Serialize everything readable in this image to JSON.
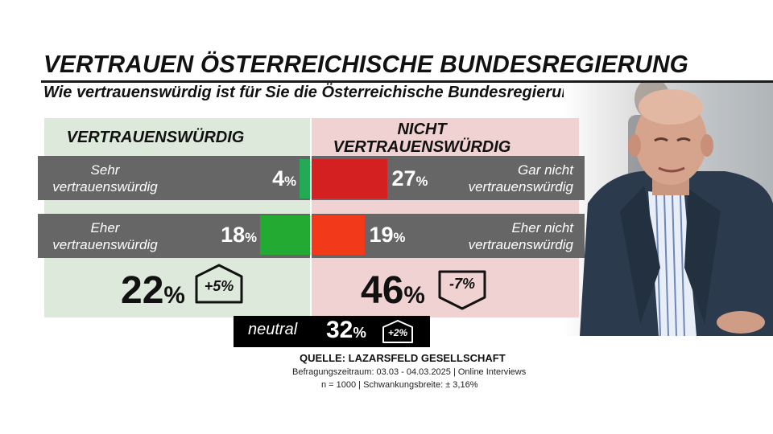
{
  "header": {
    "title": "VERTRAUEN ÖSTERREICHISCHE BUNDESREGIERUNG",
    "question": "Wie vertrauenswürdig ist für Sie die Österreichische Bundesregierung?"
  },
  "chart_data": {
    "type": "bar",
    "title": "VERTRAUEN ÖSTERREICHISCHE BUNDESREGIERUNG",
    "subtitle": "Wie vertrauenswürdig ist für Sie die Österreichische Bundesregierung?",
    "unit": "%",
    "positive": {
      "heading": "VERTRAUENSWÜRDIG",
      "rows": [
        {
          "label": "Sehr vertrauenswürdig",
          "value": 4,
          "color": "#22aa55"
        },
        {
          "label": "Eher vertrauenswürdig",
          "value": 18,
          "color": "#22aa33"
        }
      ],
      "total": 22,
      "change": "+5%"
    },
    "negative": {
      "heading": "NICHT VERTRAUENSWÜRDIG",
      "rows": [
        {
          "label": "Gar nicht vertrauenswürdig",
          "value": 27,
          "color": "#d42020"
        },
        {
          "label": "Eher nicht vertrauenswürdig",
          "value": 19,
          "color": "#f23a1a"
        }
      ],
      "total": 46,
      "change": "-7%"
    },
    "neutral": {
      "label": "neutral",
      "value": 32,
      "change": "+2%"
    }
  },
  "footer": {
    "source": "QUELLE:  LAZARSFELD GESELLSCHAFT",
    "period": "Befragungszeitraum: 03.03 - 04.03.2025 | Online Interviews",
    "sample": "n = 1000 |  Schwankungsbreite: ± 3,16%"
  },
  "colors": {
    "green_panel": "#dde9da",
    "red_panel": "#f1d2d2",
    "band": "#666666"
  }
}
